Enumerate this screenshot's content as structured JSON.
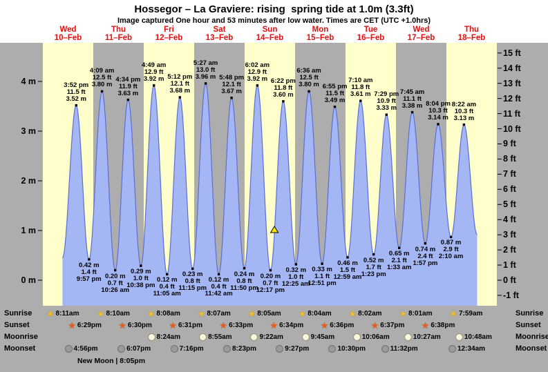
{
  "title": "Hossegor – La Graviere: rising  spring tide at 1.0m (3.3ft)",
  "subtitle": "Image captured One hour and 53 minutes after low water. Times are CET (UTC +1.0hrs)",
  "chart_data": {
    "type": "area",
    "title": "Hossegor – La Graviere: rising  spring tide at 1.0m (3.3ft)",
    "y_axis_left": {
      "unit": "m",
      "ticks": [
        "0 m",
        "1 m",
        "2 m",
        "3 m",
        "4 m"
      ]
    },
    "y_axis_right": {
      "unit": "ft",
      "ticks": [
        "-1 ft",
        "0 ft",
        "1 ft",
        "2 ft",
        "3 ft",
        "4 ft",
        "5 ft",
        "6 ft",
        "7 ft",
        "8 ft",
        "9 ft",
        "10 ft",
        "11 ft",
        "12 ft",
        "13 ft",
        "14 ft",
        "15 ft"
      ]
    },
    "days": [
      {
        "name": "Wed",
        "date": "10–Feb"
      },
      {
        "name": "Thu",
        "date": "11–Feb"
      },
      {
        "name": "Fri",
        "date": "12–Feb"
      },
      {
        "name": "Sat",
        "date": "13–Feb"
      },
      {
        "name": "Sun",
        "date": "14–Feb"
      },
      {
        "name": "Mon",
        "date": "15–Feb"
      },
      {
        "name": "Tue",
        "date": "16–Feb"
      },
      {
        "name": "Wed",
        "date": "17–Feb"
      },
      {
        "name": "Thu",
        "date": "18–Feb"
      }
    ],
    "high_tides": [
      {
        "day": 0,
        "time": "3:52 pm",
        "height_ft": "11.5 ft",
        "height_m": "3.52 m"
      },
      {
        "day": 1,
        "time": "4:09 am",
        "height_ft": "12.5 ft",
        "height_m": "3.80 m"
      },
      {
        "day": 1,
        "time": "4:34 pm",
        "height_ft": "11.9 ft",
        "height_m": "3.63 m"
      },
      {
        "day": 2,
        "time": "4:49 am",
        "height_ft": "12.9 ft",
        "height_m": "3.92 m"
      },
      {
        "day": 2,
        "time": "5:12 pm",
        "height_ft": "12.1 ft",
        "height_m": "3.68 m"
      },
      {
        "day": 3,
        "time": "5:27 am",
        "height_ft": "13.0 ft",
        "height_m": "3.96 m"
      },
      {
        "day": 3,
        "time": "5:48 pm",
        "height_ft": "12.1 ft",
        "height_m": "3.67 m"
      },
      {
        "day": 4,
        "time": "6:02 am",
        "height_ft": "12.9 ft",
        "height_m": "3.92 m"
      },
      {
        "day": 4,
        "time": "6:22 pm",
        "height_ft": "11.8 ft",
        "height_m": "3.60 m"
      },
      {
        "day": 5,
        "time": "6:36 am",
        "height_ft": "12.5 ft",
        "height_m": "3.80 m"
      },
      {
        "day": 5,
        "time": "6:55 pm",
        "height_ft": "11.5 ft",
        "height_m": "3.49 m"
      },
      {
        "day": 6,
        "time": "7:10 am",
        "height_ft": "11.8 ft",
        "height_m": "3.61 m"
      },
      {
        "day": 6,
        "time": "7:29 pm",
        "height_ft": "10.9 ft",
        "height_m": "3.33 m"
      },
      {
        "day": 7,
        "time": "7:45 am",
        "height_ft": "11.1 ft",
        "height_m": "3.38 m"
      },
      {
        "day": 7,
        "time": "8:04 pm",
        "height_ft": "10.3 ft",
        "height_m": "3.14 m"
      },
      {
        "day": 8,
        "time": "8:22 am",
        "height_ft": "10.3 ft",
        "height_m": "3.13 m"
      }
    ],
    "low_tides": [
      {
        "day": 0,
        "height_m": "0.42 m",
        "height_ft": "1.4 ft",
        "time": "9:57 pm"
      },
      {
        "day": 1,
        "height_m": "0.20 m",
        "height_ft": "0.7 ft",
        "time": "10:26 am"
      },
      {
        "day": 1,
        "height_m": "0.29 m",
        "height_ft": "1.0 ft",
        "time": "10:38 pm"
      },
      {
        "day": 2,
        "height_m": "0.12 m",
        "height_ft": "0.4 ft",
        "time": "11:05 am"
      },
      {
        "day": 2,
        "height_m": "0.23 m",
        "height_ft": "0.8 ft",
        "time": "11:15 pm"
      },
      {
        "day": 3,
        "height_m": "0.12 m",
        "height_ft": "0.4 ft",
        "time": "11:42 am"
      },
      {
        "day": 3,
        "height_m": "0.24 m",
        "height_ft": "0.8 ft",
        "time": "11:50 pm"
      },
      {
        "day": 4,
        "height_m": "0.20 m",
        "height_ft": "0.7 ft",
        "time": "12:17 pm"
      },
      {
        "day": 5,
        "height_m": "0.32 m",
        "height_ft": "1.0 ft",
        "time": "12:25 am"
      },
      {
        "day": 5,
        "height_m": "0.33 m",
        "height_ft": "1.1 ft",
        "time": "12:51 pm"
      },
      {
        "day": 6,
        "height_m": "0.46 m",
        "height_ft": "1.5 ft",
        "time": "12:59 am"
      },
      {
        "day": 6,
        "height_m": "0.52 m",
        "height_ft": "1.7 ft",
        "time": "1:23 pm"
      },
      {
        "day": 7,
        "height_m": "0.65 m",
        "height_ft": "2.1 ft",
        "time": "1:33 am"
      },
      {
        "day": 7,
        "height_m": "0.74 m",
        "height_ft": "2.4 ft",
        "time": "1:57 pm"
      },
      {
        "day": 8,
        "height_m": "0.87 m",
        "height_ft": "2.9 ft",
        "time": "2:10 am"
      }
    ],
    "current_marker": {
      "day": 4,
      "time": "2:10 pm",
      "height_m": 1.0,
      "symbol": "triangle",
      "color": "#ffe800"
    },
    "curve_window": {
      "start": {
        "day": 0,
        "time": "9:20 am",
        "height_m": 0.45
      },
      "end": {
        "day": 8,
        "time": "2:37 pm",
        "height_m": 0.92
      }
    },
    "colors": {
      "band_yellow": "#ffffcc",
      "band_gray": "#adadad",
      "area_fill": "#a4b6f4",
      "area_stroke": "#5b6ed6",
      "day_label": "#e50d0d",
      "extreme_dot": "#000000"
    }
  },
  "astro": {
    "rows": [
      {
        "label": "Sunrise",
        "icon": "sunrise-star-icon",
        "icon_color": "#f0c02f",
        "events": [
          {
            "day": 0,
            "time": "8:11am"
          },
          {
            "day": 1,
            "time": "8:10am"
          },
          {
            "day": 2,
            "time": "8:08am"
          },
          {
            "day": 3,
            "time": "8:07am"
          },
          {
            "day": 4,
            "time": "8:05am"
          },
          {
            "day": 5,
            "time": "8:04am"
          },
          {
            "day": 6,
            "time": "8:02am"
          },
          {
            "day": 7,
            "time": "8:01am"
          },
          {
            "day": 8,
            "time": "7:59am"
          }
        ]
      },
      {
        "label": "Sunset",
        "icon": "sunset-star-icon",
        "icon_color": "#e85c1f",
        "events": [
          {
            "day": 0,
            "time": "6:29pm"
          },
          {
            "day": 1,
            "time": "6:30pm"
          },
          {
            "day": 2,
            "time": "6:31pm"
          },
          {
            "day": 3,
            "time": "6:33pm"
          },
          {
            "day": 4,
            "time": "6:34pm"
          },
          {
            "day": 5,
            "time": "6:36pm"
          },
          {
            "day": 6,
            "time": "6:37pm"
          },
          {
            "day": 7,
            "time": "6:38pm"
          }
        ]
      },
      {
        "label": "Moonrise",
        "icon": "moonrise-icon",
        "icon_color": "#faf6e0",
        "events": [
          {
            "day": 2,
            "time": "8:24am"
          },
          {
            "day": 3,
            "time": "8:55am"
          },
          {
            "day": 4,
            "time": "9:22am"
          },
          {
            "day": 5,
            "time": "9:45am"
          },
          {
            "day": 6,
            "time": "10:06am"
          },
          {
            "day": 7,
            "time": "10:27am"
          },
          {
            "day": 8,
            "time": "10:48am"
          }
        ]
      },
      {
        "label": "Moonset",
        "icon": "moonset-icon",
        "icon_color": "#9b9b9b",
        "events": [
          {
            "day": 0,
            "time": "4:56pm"
          },
          {
            "day": 1,
            "time": "6:07pm"
          },
          {
            "day": 2,
            "time": "7:16pm"
          },
          {
            "day": 3,
            "time": "8:23pm"
          },
          {
            "day": 4,
            "time": "9:27pm"
          },
          {
            "day": 5,
            "time": "10:30pm"
          },
          {
            "day": 6,
            "time": "11:32pm"
          },
          {
            "day": 8,
            "time": "12:34am"
          }
        ]
      }
    ],
    "new_moon_note": "New Moon | 8:05pm"
  }
}
